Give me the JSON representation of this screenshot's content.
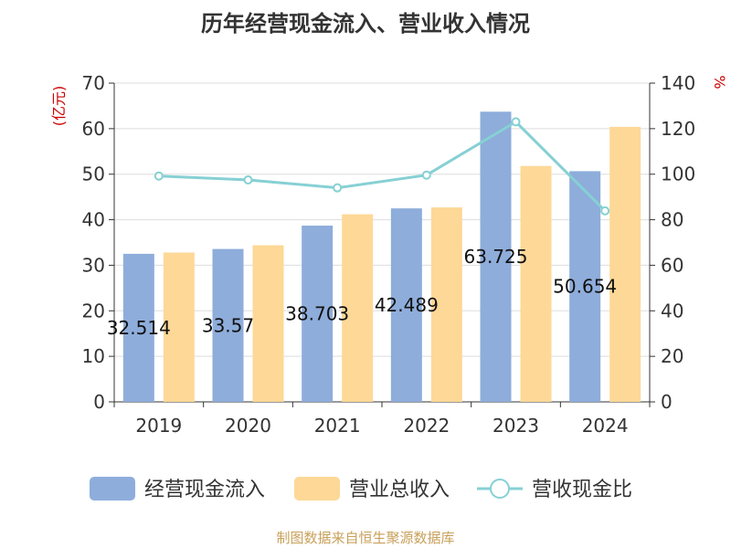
{
  "chart_data": {
    "type": "bar",
    "title": "历年经营现金流入、营业收入情况",
    "categories": [
      "2019",
      "2020",
      "2021",
      "2022",
      "2023",
      "2024"
    ],
    "ylabel_left": "(亿元)",
    "ylabel_right": "%",
    "ylim_left": [
      0,
      70
    ],
    "ylim_right": [
      0,
      140
    ],
    "yticks_left": [
      "0",
      "10",
      "20",
      "30",
      "40",
      "50",
      "60",
      "70"
    ],
    "yticks_right": [
      "0",
      "20",
      "40",
      "60",
      "80",
      "100",
      "120",
      "140"
    ],
    "series": [
      {
        "name": "经营现金流入",
        "type": "bar",
        "axis": "left",
        "color": "#8eaddb",
        "values": [
          32.514,
          33.57,
          38.703,
          42.489,
          63.725,
          50.654
        ],
        "labels": [
          "32.514",
          "33.57",
          "38.703",
          "42.489",
          "63.725",
          "50.654"
        ]
      },
      {
        "name": "营业总收入",
        "type": "bar",
        "axis": "left",
        "color": "#fdd897",
        "values": [
          32.8,
          34.4,
          41.2,
          42.7,
          51.8,
          60.4
        ]
      },
      {
        "name": "营收现金比",
        "type": "line",
        "axis": "right",
        "color": "#86d0d4",
        "values": [
          99.2,
          97.5,
          94.0,
          99.6,
          123.0,
          83.9
        ]
      }
    ],
    "grid": true,
    "legend": "bottom"
  },
  "footer": {
    "source": "制图数据来自恒生聚源数据库"
  }
}
